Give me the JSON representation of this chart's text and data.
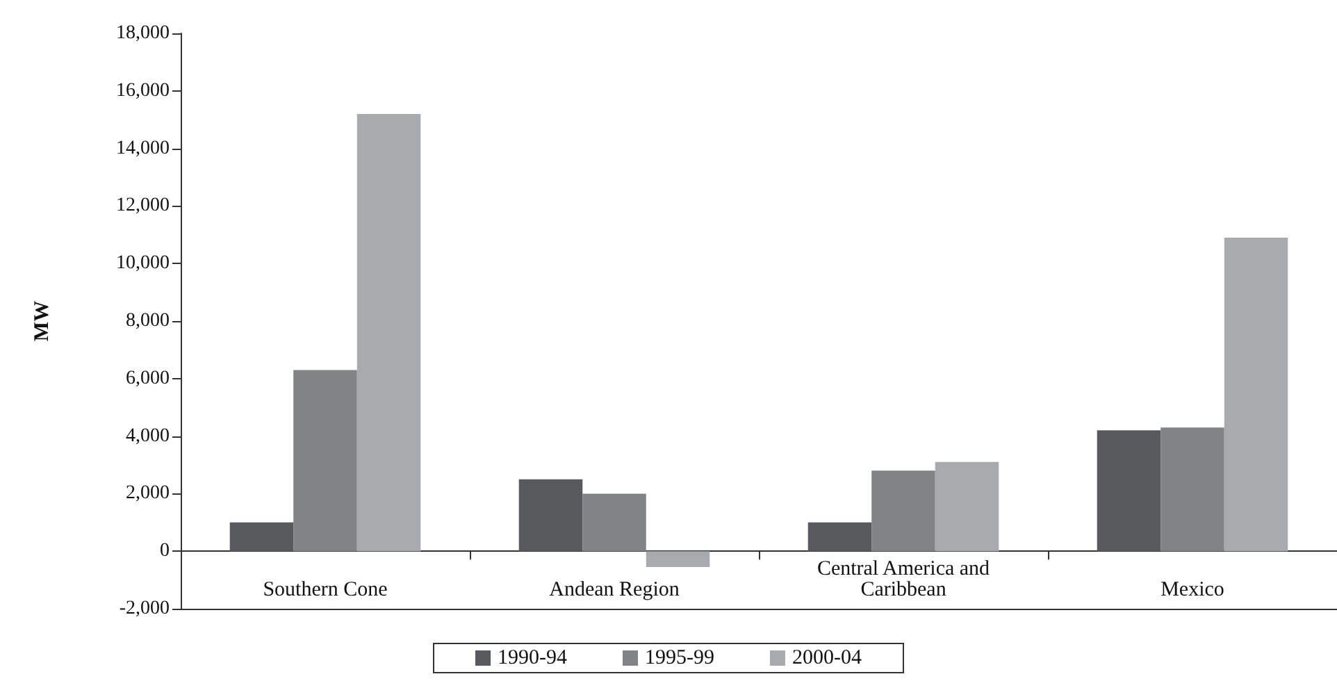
{
  "chart_data": {
    "type": "bar",
    "ylabel": "MW",
    "categories": [
      "Southern Cone",
      "Andean Region",
      "Central America and\nCaribbean",
      "Mexico"
    ],
    "series": [
      {
        "name": "1990-94",
        "color": "#58595d",
        "values": [
          1000,
          2500,
          1000,
          4200
        ]
      },
      {
        "name": "1995-99",
        "color": "#828385",
        "values": [
          6300,
          2000,
          2800,
          4300
        ]
      },
      {
        "name": "2000-04",
        "color": "#a9aaad",
        "values": [
          15200,
          -550,
          3100,
          10900
        ]
      }
    ],
    "ylim": [
      -2000,
      18000
    ],
    "yticks": [
      {
        "value": -2000,
        "label": "-2,000"
      },
      0,
      {
        "value": 2000,
        "label": "2,000"
      },
      {
        "value": 4000,
        "label": "4,000"
      },
      {
        "value": 6000,
        "label": "6,000"
      },
      {
        "value": 8000,
        "label": "8,000"
      },
      {
        "value": 10000,
        "label": "10,000"
      },
      {
        "value": 12000,
        "label": "12,000"
      },
      {
        "value": 14000,
        "label": "14,000"
      },
      {
        "value": 16000,
        "label": "16,000"
      },
      {
        "value": 18000,
        "label": "18,000"
      }
    ],
    "legend": "bottom"
  }
}
